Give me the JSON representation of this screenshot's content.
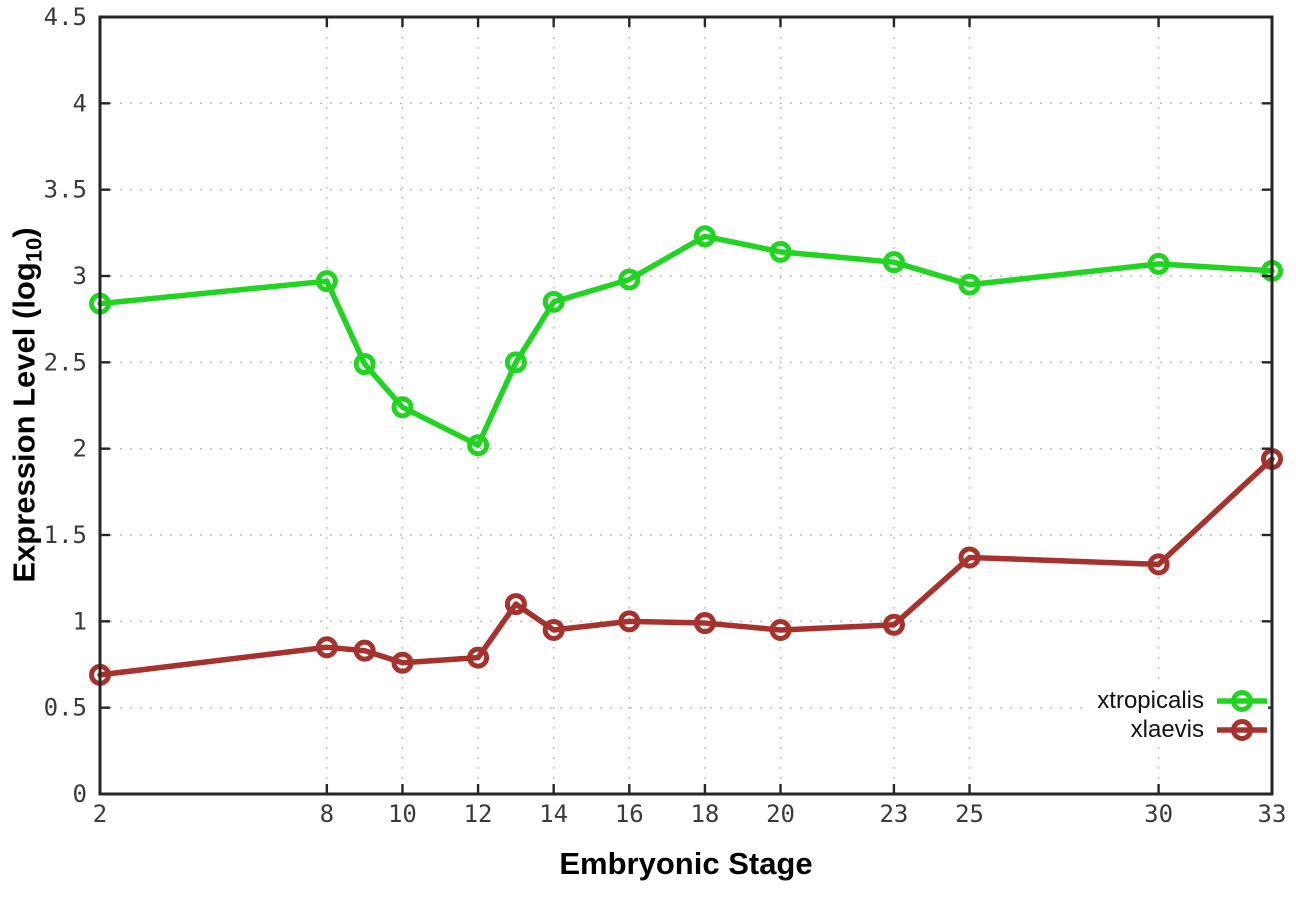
{
  "chart_data": {
    "type": "line",
    "title": "",
    "xlabel": "Embryonic Stage",
    "ylabel": "Expression Level (log10)",
    "ylabel_parts": {
      "main": "Expression Level (log",
      "sub": "10",
      "close": ")"
    },
    "xlim": [
      2,
      33
    ],
    "ylim": [
      0,
      4.5
    ],
    "grid": true,
    "grid_style": "dotted",
    "legend_position": "inside-bottom-right",
    "x": [
      2,
      8,
      9,
      10,
      12,
      13,
      14,
      16,
      18,
      20,
      23,
      25,
      30,
      33
    ],
    "xtick_values": [
      2,
      8,
      10,
      12,
      14,
      16,
      18,
      20,
      23,
      25,
      30,
      33
    ],
    "xtick_labels": [
      "2",
      "8",
      "10",
      "12",
      "14",
      "16",
      "18",
      "20",
      "23",
      "25",
      "30",
      "33"
    ],
    "ytick_values": [
      0,
      0.5,
      1,
      1.5,
      2,
      2.5,
      3,
      3.5,
      4,
      4.5
    ],
    "ytick_labels": [
      "0",
      "0.5",
      "1",
      "1.5",
      "2",
      "2.5",
      "3",
      "3.5",
      "4",
      "4.5"
    ],
    "series": [
      {
        "name": "xtropicalis",
        "color": "#22d422",
        "values": [
          2.84,
          2.97,
          2.49,
          2.24,
          2.02,
          2.5,
          2.85,
          2.98,
          3.23,
          3.14,
          3.08,
          2.95,
          3.07,
          3.03
        ]
      },
      {
        "name": "xlaevis",
        "color": "#a5322d",
        "values": [
          0.69,
          0.85,
          0.83,
          0.76,
          0.79,
          1.1,
          0.95,
          1.0,
          0.99,
          0.95,
          0.98,
          1.37,
          1.33,
          1.94
        ]
      }
    ]
  },
  "style_colors": {
    "axis": "#262626",
    "tick_label": "#3a3a3a",
    "gridline": "#b3b3b3",
    "background": "#ffffff"
  }
}
